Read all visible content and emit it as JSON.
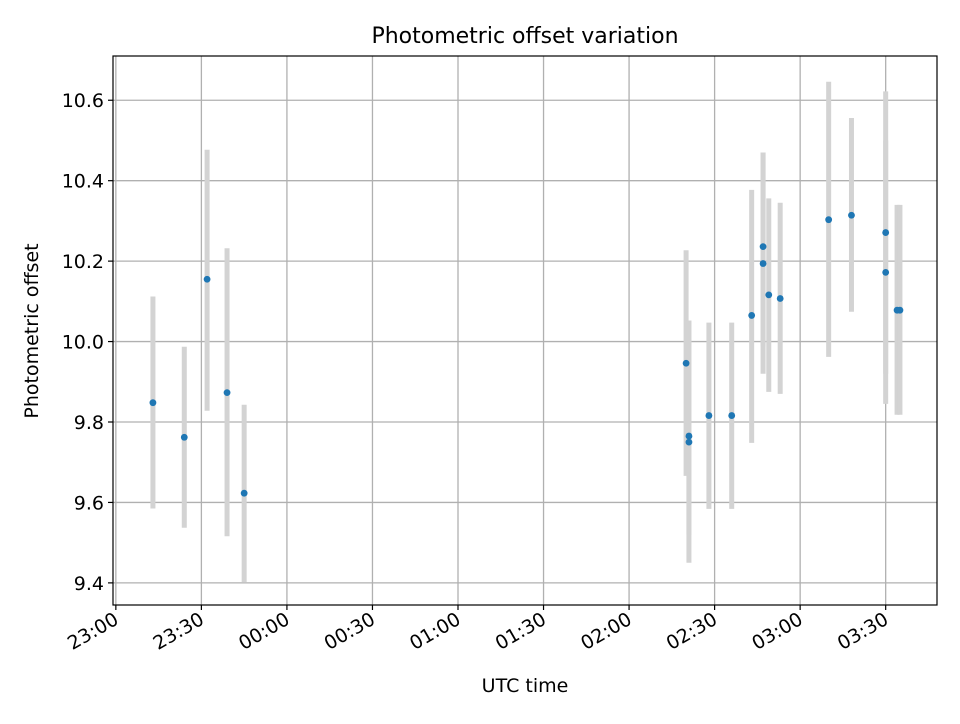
{
  "chart_data": {
    "type": "scatter",
    "title": "Photometric offset variation",
    "xlabel": "UTC time",
    "ylabel": "Photometric offset",
    "grid": true,
    "x_tick_labels": [
      "23:00",
      "23:30",
      "00:00",
      "00:30",
      "01:00",
      "01:30",
      "02:00",
      "02:30",
      "03:00",
      "03:30"
    ],
    "y_tick_labels": [
      "9.4",
      "9.6",
      "9.8",
      "10.0",
      "10.2",
      "10.4",
      "10.6"
    ],
    "xlim": [
      "22:59",
      "03:48"
    ],
    "ylim": [
      9.345,
      10.71
    ],
    "colors": {
      "point": "#1f77b4",
      "errorbar": "#d3d3d3",
      "grid": "#b0b0b0"
    },
    "series": [
      {
        "points": [
          {
            "x": "23:13",
            "y": 9.848,
            "ylow": 9.585,
            "yhigh": 10.112
          },
          {
            "x": "23:24",
            "y": 9.762,
            "ylow": 9.537,
            "yhigh": 9.987
          },
          {
            "x": "23:32",
            "y": 10.155,
            "ylow": 9.828,
            "yhigh": 10.477
          },
          {
            "x": "23:39",
            "y": 9.873,
            "ylow": 9.516,
            "yhigh": 10.232
          },
          {
            "x": "23:45",
            "y": 9.623,
            "ylow": 9.402,
            "yhigh": 9.843
          },
          {
            "x": "02:20",
            "y": 9.946,
            "ylow": 9.666,
            "yhigh": 10.227
          },
          {
            "x": "02:21",
            "y": 9.765,
            "ylow": 9.52,
            "yhigh": 10.052
          },
          {
            "x": "02:21",
            "y": 9.75,
            "ylow": 9.45,
            "yhigh": 10.052
          },
          {
            "x": "02:28",
            "y": 9.816,
            "ylow": 9.584,
            "yhigh": 10.047
          },
          {
            "x": "02:36",
            "y": 9.816,
            "ylow": 9.584,
            "yhigh": 10.047
          },
          {
            "x": "02:43",
            "y": 10.065,
            "ylow": 9.748,
            "yhigh": 10.377
          },
          {
            "x": "02:47",
            "y": 10.236,
            "ylow": 9.988,
            "yhigh": 10.47
          },
          {
            "x": "02:47",
            "y": 10.194,
            "ylow": 9.92,
            "yhigh": 10.47
          },
          {
            "x": "02:49",
            "y": 10.116,
            "ylow": 9.875,
            "yhigh": 10.356
          },
          {
            "x": "02:53",
            "y": 10.107,
            "ylow": 9.87,
            "yhigh": 10.345
          },
          {
            "x": "03:10",
            "y": 10.303,
            "ylow": 9.962,
            "yhigh": 10.646
          },
          {
            "x": "03:18",
            "y": 10.314,
            "ylow": 10.074,
            "yhigh": 10.556
          },
          {
            "x": "03:30",
            "y": 10.271,
            "ylow": 9.92,
            "yhigh": 10.622
          },
          {
            "x": "03:30",
            "y": 10.172,
            "ylow": 9.845,
            "yhigh": 10.5
          },
          {
            "x": "03:34",
            "y": 10.078,
            "ylow": 9.818,
            "yhigh": 10.34
          },
          {
            "x": "03:35",
            "y": 10.078,
            "ylow": 9.818,
            "yhigh": 10.34
          }
        ]
      }
    ]
  }
}
